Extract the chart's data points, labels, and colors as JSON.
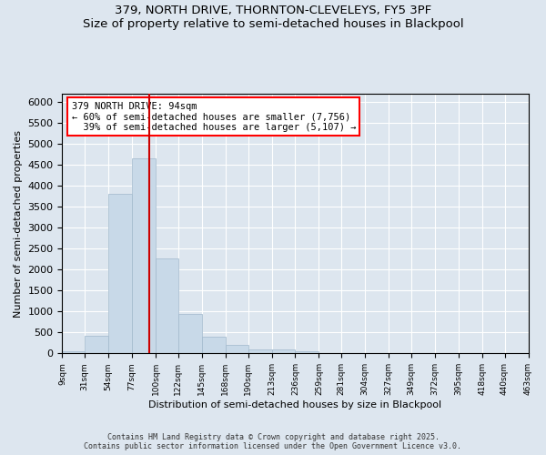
{
  "title_line1": "379, NORTH DRIVE, THORNTON-CLEVELEYS, FY5 3PF",
  "title_line2": "Size of property relative to semi-detached houses in Blackpool",
  "xlabel": "Distribution of semi-detached houses by size in Blackpool",
  "ylabel": "Number of semi-detached properties",
  "bar_values": [
    50,
    430,
    3820,
    4650,
    2270,
    940,
    390,
    200,
    100,
    100,
    50,
    0,
    0,
    0,
    0,
    0,
    0,
    0,
    0,
    0
  ],
  "bar_edges": [
    9,
    31,
    54,
    77,
    100,
    122,
    145,
    168,
    190,
    213,
    236,
    259,
    281,
    304,
    327,
    349,
    372,
    395,
    418,
    440,
    463
  ],
  "tick_labels": [
    "9sqm",
    "31sqm",
    "54sqm",
    "77sqm",
    "100sqm",
    "122sqm",
    "145sqm",
    "168sqm",
    "190sqm",
    "213sqm",
    "236sqm",
    "259sqm",
    "281sqm",
    "304sqm",
    "327sqm",
    "349sqm",
    "372sqm",
    "395sqm",
    "418sqm",
    "440sqm",
    "463sqm"
  ],
  "bar_color": "#c8d9e8",
  "bar_edge_color": "#a0b8cc",
  "vline_x": 94,
  "vline_color": "#cc0000",
  "annotation_box_text": "379 NORTH DRIVE: 94sqm\n← 60% of semi-detached houses are smaller (7,756)\n  39% of semi-detached houses are larger (5,107) →",
  "annotation_box_color": "red",
  "ylim": [
    0,
    6200
  ],
  "yticks": [
    0,
    500,
    1000,
    1500,
    2000,
    2500,
    3000,
    3500,
    4000,
    4500,
    5000,
    5500,
    6000
  ],
  "background_color": "#dde6ef",
  "plot_background_color": "#dde6ef",
  "footer_line1": "Contains HM Land Registry data © Crown copyright and database right 2025.",
  "footer_line2": "Contains public sector information licensed under the Open Government Licence v3.0."
}
